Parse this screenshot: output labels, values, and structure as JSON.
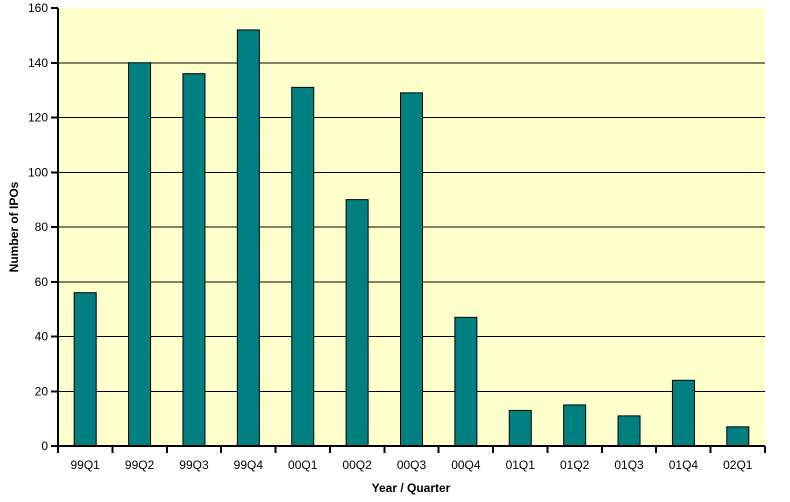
{
  "chart_data": {
    "type": "bar",
    "title": "",
    "categories": [
      "99Q1",
      "99Q2",
      "99Q3",
      "99Q4",
      "00Q1",
      "00Q2",
      "00Q3",
      "00Q4",
      "01Q1",
      "01Q2",
      "01Q3",
      "01Q4",
      "02Q1"
    ],
    "values": [
      56,
      140,
      136,
      152,
      131,
      90,
      129,
      47,
      13,
      15,
      11,
      24,
      7
    ],
    "xlabel": "Year / Quarter",
    "ylabel": "Number of IPOs",
    "ylim": [
      0,
      160
    ],
    "yticks": [
      0,
      20,
      40,
      60,
      80,
      100,
      120,
      140,
      160
    ],
    "grid": true,
    "legend": "none",
    "colors": {
      "bar_fill": "#008080",
      "bar_stroke": "#000000",
      "plot_bg": "#FFFFCC",
      "page_bg": "#FFFFFF",
      "grid": "#000000",
      "axis": "#000000",
      "text": "#000000"
    }
  }
}
